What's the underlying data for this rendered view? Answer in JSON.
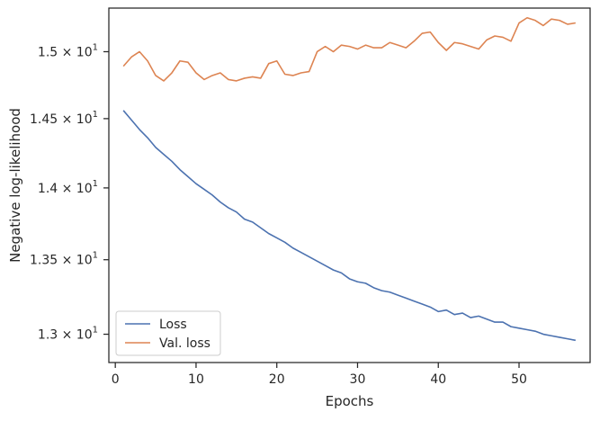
{
  "chart_data": {
    "type": "line",
    "title": "",
    "xlabel": "Epochs",
    "ylabel": "Negative log-likelihood",
    "yscale": "log",
    "xlim": [
      -0.8,
      58.8
    ],
    "ylim": [
      12.815,
      15.335
    ],
    "xticks": [
      0,
      10,
      20,
      30,
      40,
      50
    ],
    "yticks": [
      {
        "value": 13.0,
        "label_base": "1.3",
        "label_exp": "1"
      },
      {
        "value": 13.5,
        "label_base": "1.35",
        "label_exp": "1"
      },
      {
        "value": 14.0,
        "label_base": "1.4",
        "label_exp": "1"
      },
      {
        "value": 14.5,
        "label_base": "1.45",
        "label_exp": "1"
      },
      {
        "value": 15.0,
        "label_base": "1.5",
        "label_exp": "1"
      }
    ],
    "grid": false,
    "legend_position": "lower-left",
    "x": [
      1,
      2,
      3,
      4,
      5,
      6,
      7,
      8,
      9,
      10,
      11,
      12,
      13,
      14,
      15,
      16,
      17,
      18,
      19,
      20,
      21,
      22,
      23,
      24,
      25,
      26,
      27,
      28,
      29,
      30,
      31,
      32,
      33,
      34,
      35,
      36,
      37,
      38,
      39,
      40,
      41,
      42,
      43,
      44,
      45,
      46,
      47,
      48,
      49,
      50,
      51,
      52,
      53,
      54,
      55,
      56,
      57
    ],
    "series": [
      {
        "name": "Loss",
        "color": "#4c72b0",
        "values": [
          14.56,
          14.49,
          14.42,
          14.36,
          14.29,
          14.24,
          14.19,
          14.13,
          14.08,
          14.03,
          13.99,
          13.95,
          13.9,
          13.86,
          13.83,
          13.78,
          13.76,
          13.72,
          13.68,
          13.65,
          13.62,
          13.58,
          13.55,
          13.52,
          13.49,
          13.46,
          13.43,
          13.41,
          13.37,
          13.35,
          13.34,
          13.31,
          13.29,
          13.28,
          13.26,
          13.24,
          13.22,
          13.2,
          13.18,
          13.15,
          13.16,
          13.13,
          13.14,
          13.11,
          13.12,
          13.1,
          13.08,
          13.08,
          13.05,
          13.04,
          13.03,
          13.02,
          13.0,
          12.99,
          12.98,
          12.97,
          12.96
        ]
      },
      {
        "name": "Val. loss",
        "color": "#dd8452",
        "values": [
          14.89,
          14.96,
          15.0,
          14.93,
          14.82,
          14.78,
          14.84,
          14.93,
          14.92,
          14.84,
          14.79,
          14.82,
          14.84,
          14.79,
          14.78,
          14.8,
          14.81,
          14.8,
          14.91,
          14.93,
          14.83,
          14.82,
          14.84,
          14.85,
          15.0,
          15.04,
          15.0,
          15.05,
          15.04,
          15.02,
          15.05,
          15.03,
          15.03,
          15.07,
          15.05,
          15.03,
          15.08,
          15.14,
          15.15,
          15.07,
          15.01,
          15.07,
          15.06,
          15.04,
          15.02,
          15.09,
          15.12,
          15.11,
          15.08,
          15.22,
          15.26,
          15.24,
          15.2,
          15.25,
          15.24,
          15.21,
          15.22
        ]
      }
    ]
  }
}
